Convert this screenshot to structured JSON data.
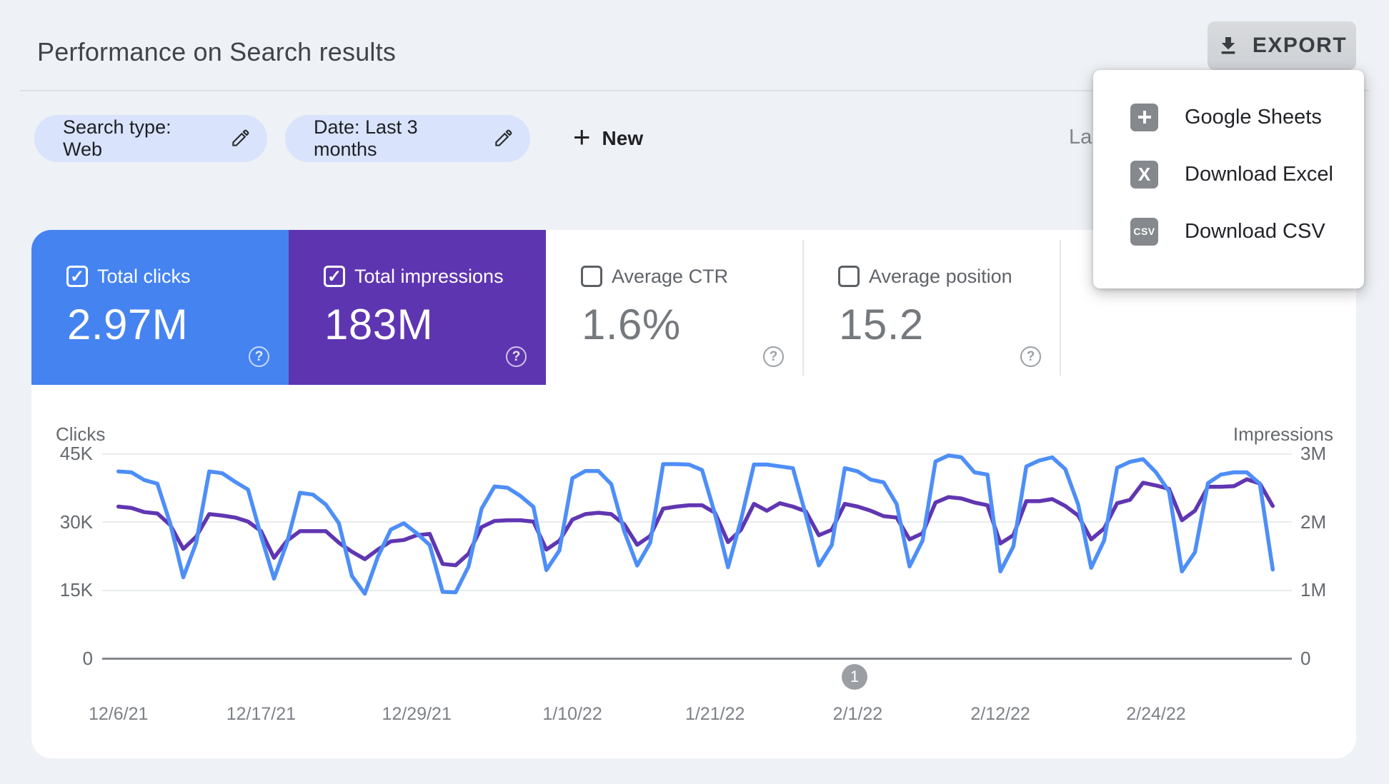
{
  "header": {
    "title": "Performance on Search results",
    "export_label": "EXPORT",
    "last_updated_partial": "La"
  },
  "filters": {
    "search_type_chip": "Search type: Web",
    "date_chip": "Date: Last 3 months",
    "plus_glyph": "+",
    "new_label": "New"
  },
  "export_menu": {
    "items": [
      {
        "label": "Google Sheets",
        "icon": "sheets-icon"
      },
      {
        "label": "Download Excel",
        "icon": "excel-icon",
        "icon_text": "X"
      },
      {
        "label": "Download CSV",
        "icon": "csv-icon",
        "icon_text": "CSV"
      }
    ]
  },
  "metric_cards": [
    {
      "label": "Total clicks",
      "value": "2.97M",
      "checked": true,
      "color": "#4583f1"
    },
    {
      "label": "Total impressions",
      "value": "183M",
      "checked": true,
      "color": "#5e35b1"
    },
    {
      "label": "Average CTR",
      "value": "1.6%",
      "checked": false,
      "color": ""
    },
    {
      "label": "Average position",
      "value": "15.2",
      "checked": false,
      "color": ""
    }
  ],
  "pagination_badge": "1",
  "ui_colors": {
    "clicks_line": "#4e8ef7",
    "impressions_line": "#6036b1",
    "badge_gray": "#9b9fa4",
    "chip_bg": "#d9e3fb"
  },
  "chart_data": {
    "type": "line",
    "title": "Clicks and Impressions over last 3 months (daily)",
    "legend_position": "none",
    "grid": true,
    "left_axis": {
      "label": "Clicks",
      "ticks": [
        "45K",
        "30K",
        "15K",
        "0"
      ],
      "max": 45000
    },
    "right_axis": {
      "label": "Impressions",
      "ticks": [
        "3M",
        "2M",
        "1M",
        "0"
      ],
      "max": 3000000
    },
    "x_labels": [
      "12/6/21",
      "12/17/21",
      "12/29/21",
      "1/10/22",
      "1/21/22",
      "2/1/22",
      "2/12/22",
      "2/24/22"
    ],
    "x_label_day_indices": [
      0,
      11,
      23,
      35,
      46,
      57,
      68,
      80
    ],
    "series": [
      {
        "name": "Clicks",
        "unit": "thousands",
        "axis": "left",
        "color": "#4e8ef7",
        "values": [
          41.2,
          41.0,
          39.3,
          38.5,
          29.7,
          17.9,
          25.5,
          41.2,
          40.8,
          38.9,
          37.2,
          27.0,
          17.6,
          25.5,
          36.5,
          36.1,
          33.9,
          29.8,
          18.2,
          14.3,
          22.4,
          28.4,
          29.8,
          27.6,
          25.0,
          14.7,
          14.6,
          20.3,
          33.0,
          37.9,
          37.6,
          35.8,
          33.4,
          19.5,
          23.8,
          39.7,
          41.3,
          41.3,
          38.4,
          28.0,
          20.5,
          25.5,
          42.8,
          42.8,
          42.7,
          41.5,
          31.8,
          20.1,
          30.5,
          42.7,
          42.7,
          42.3,
          41.9,
          31.6,
          20.5,
          25.0,
          41.9,
          41.2,
          39.4,
          38.8,
          34.0,
          20.3,
          26.0,
          43.4,
          44.7,
          44.3,
          41.0,
          40.5,
          19.2,
          24.7,
          42.3,
          43.6,
          44.3,
          41.7,
          33.9,
          20.0,
          26.0,
          42.0,
          43.3,
          43.9,
          41.0,
          36.8,
          19.2,
          23.4,
          38.6,
          40.5,
          41.0,
          41.0,
          38.5,
          19.6
        ]
      },
      {
        "name": "Impressions",
        "unit": "millions",
        "axis": "right",
        "color": "#6036b1",
        "values": [
          2.23,
          2.21,
          2.15,
          2.13,
          1.96,
          1.61,
          1.79,
          2.12,
          2.1,
          2.07,
          2.01,
          1.87,
          1.48,
          1.73,
          1.87,
          1.87,
          1.87,
          1.7,
          1.57,
          1.46,
          1.6,
          1.72,
          1.74,
          1.81,
          1.83,
          1.39,
          1.37,
          1.54,
          1.93,
          2.02,
          2.03,
          2.03,
          2.01,
          1.6,
          1.73,
          2.04,
          2.12,
          2.14,
          2.12,
          1.97,
          1.67,
          1.8,
          2.2,
          2.23,
          2.25,
          2.25,
          2.14,
          1.71,
          1.89,
          2.27,
          2.17,
          2.28,
          2.23,
          2.16,
          1.81,
          1.89,
          2.27,
          2.23,
          2.17,
          2.09,
          2.07,
          1.75,
          1.84,
          2.29,
          2.37,
          2.35,
          2.29,
          2.25,
          1.69,
          1.81,
          2.31,
          2.31,
          2.34,
          2.24,
          2.1,
          1.75,
          1.91,
          2.28,
          2.33,
          2.58,
          2.54,
          2.49,
          2.03,
          2.17,
          2.52,
          2.52,
          2.53,
          2.63,
          2.57,
          2.24
        ]
      }
    ]
  }
}
